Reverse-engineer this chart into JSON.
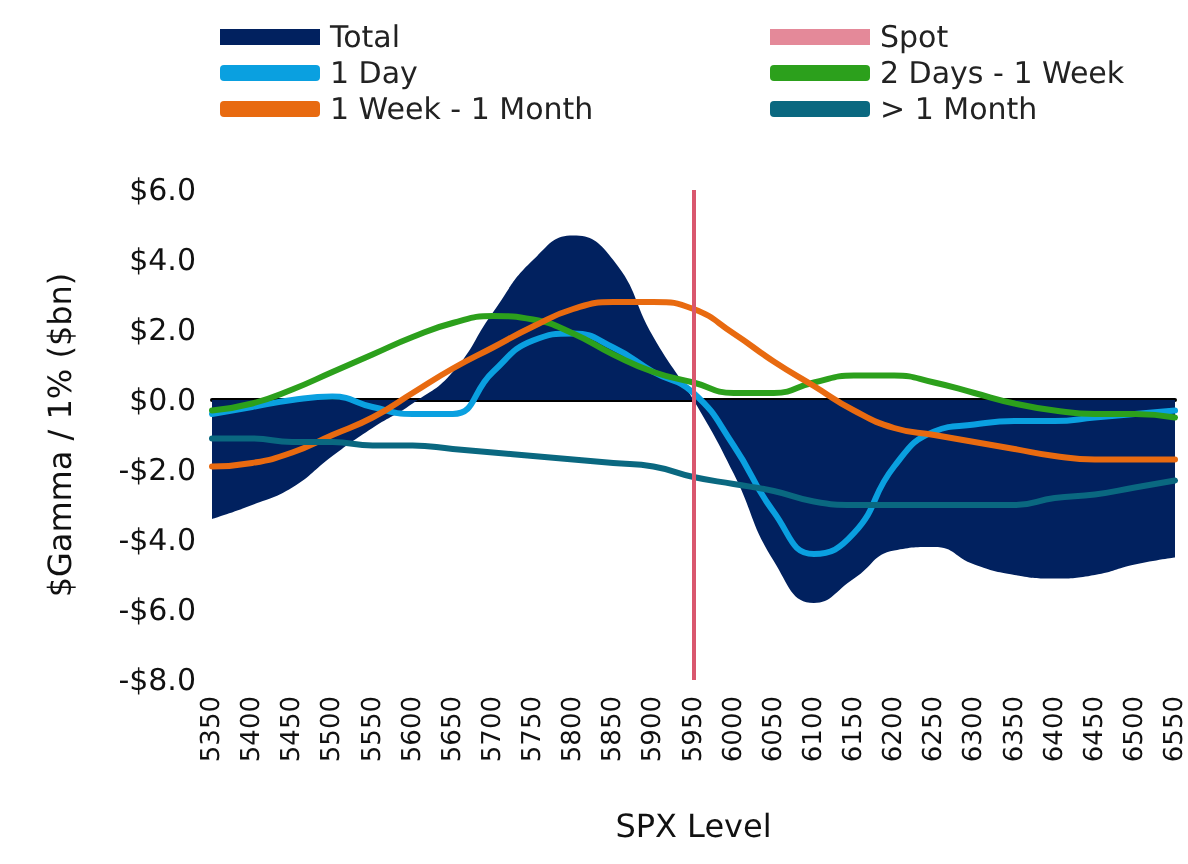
{
  "chart_data": {
    "type": "line",
    "xlabel": "SPX Level",
    "ylabel": "$Gamma / 1% ($bn)",
    "categories": [
      "5350",
      "5400",
      "5450",
      "5500",
      "5550",
      "5600",
      "5650",
      "5700",
      "5750",
      "5800",
      "5850",
      "5900",
      "5950",
      "6000",
      "6050",
      "6100",
      "6150",
      "6200",
      "6250",
      "6300",
      "6350",
      "6400",
      "6450",
      "6500",
      "6550"
    ],
    "series": [
      {
        "name": "Total",
        "type": "area",
        "color": "#01215f",
        "values": [
          -3.4,
          -3.0,
          -2.5,
          -1.6,
          -0.8,
          -0.1,
          0.8,
          2.5,
          4.0,
          4.7,
          4.0,
          1.8,
          0.0,
          -2.1,
          -4.6,
          -5.8,
          -5.1,
          -4.3,
          -4.2,
          -4.7,
          -5.0,
          -5.1,
          -5.0,
          -4.7,
          -4.5
        ]
      },
      {
        "name": "1 Day",
        "color": "#0aa0e0",
        "values": [
          -0.4,
          -0.2,
          0.0,
          0.1,
          -0.2,
          -0.4,
          -0.4,
          0.8,
          1.7,
          1.9,
          1.5,
          0.8,
          0.2,
          -1.3,
          -3.2,
          -4.4,
          -3.8,
          -1.9,
          -0.9,
          -0.7,
          -0.6,
          -0.6,
          -0.5,
          -0.4,
          -0.3
        ]
      },
      {
        "name": "2 Days - 1 Week",
        "color": "#2ca01c",
        "values": [
          -0.3,
          -0.1,
          0.3,
          0.8,
          1.3,
          1.8,
          2.2,
          2.4,
          2.3,
          1.9,
          1.3,
          0.8,
          0.5,
          0.2,
          0.2,
          0.5,
          0.7,
          0.7,
          0.5,
          0.2,
          -0.1,
          -0.3,
          -0.4,
          -0.4,
          -0.5
        ]
      },
      {
        "name": "1 Week - 1 Month",
        "color": "#e86a10",
        "values": [
          -1.9,
          -1.8,
          -1.5,
          -1.0,
          -0.5,
          0.2,
          0.9,
          1.5,
          2.1,
          2.6,
          2.8,
          2.8,
          2.6,
          1.9,
          1.1,
          0.4,
          -0.3,
          -0.8,
          -1.0,
          -1.2,
          -1.4,
          -1.6,
          -1.7,
          -1.7,
          -1.7
        ]
      },
      {
        "name": "> 1 Month",
        "color": "#0a6880",
        "values": [
          -1.1,
          -1.1,
          -1.2,
          -1.2,
          -1.3,
          -1.3,
          -1.4,
          -1.5,
          -1.6,
          -1.7,
          -1.8,
          -1.9,
          -2.2,
          -2.4,
          -2.6,
          -2.9,
          -3.0,
          -3.0,
          -3.0,
          -3.0,
          -3.0,
          -2.8,
          -2.7,
          -2.5,
          -2.3
        ]
      }
    ],
    "ref_lines": [
      {
        "axis": "x",
        "value": "5950",
        "label": "Spot",
        "color": "#d9576e"
      }
    ],
    "ylim": [
      -8,
      6
    ],
    "yticks": [
      {
        "value": -8,
        "label": "-$8.0"
      },
      {
        "value": -6,
        "label": "-$6.0"
      },
      {
        "value": -4,
        "label": "-$4.0"
      },
      {
        "value": -2,
        "label": "-$2.0"
      },
      {
        "value": 0,
        "label": "$0.0"
      },
      {
        "value": 2,
        "label": "$2.0"
      },
      {
        "value": 4,
        "label": "$4.0"
      },
      {
        "value": 6,
        "label": "$6.0"
      }
    ],
    "grid": false,
    "legend": "top",
    "marker": "none",
    "line_style": "solid"
  }
}
